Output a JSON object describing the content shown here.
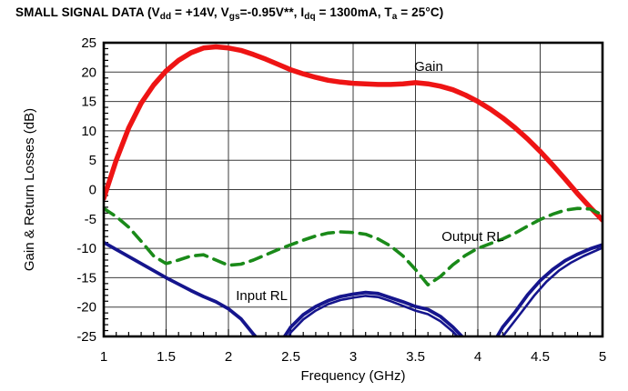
{
  "page": {
    "background": "#ffffff"
  },
  "title": {
    "plain": "SMALL SIGNAL DATA (Vdd = +14V, Vgs=-0.95V**, Idq = 1300mA, Ta = 25°C)",
    "segments": [
      {
        "text": "SMALL SIGNAL DATA (V"
      },
      {
        "text": "dd",
        "sub": true
      },
      {
        "text": " = +14V, V"
      },
      {
        "text": "gs",
        "sub": true
      },
      {
        "text": "=-0.95V**, I"
      },
      {
        "text": "dq",
        "sub": true
      },
      {
        "text": " = 1300mA, T"
      },
      {
        "text": "a",
        "sub": true
      },
      {
        "text": " = 25°C)"
      }
    ]
  },
  "chart_data": {
    "type": "line",
    "title": "SMALL SIGNAL DATA (Vdd = +14V, Vgs=-0.95V**, Idq = 1300mA, Ta = 25°C)",
    "xlabel": "Frequency (GHz)",
    "ylabel": "Gain & Return Losses (dB)",
    "xlim": [
      1,
      5
    ],
    "ylim": [
      -25,
      25
    ],
    "x_major_step": 0.5,
    "x_minor_step": 0.1,
    "y_major_step": 5,
    "y_minor_step": 1,
    "grid": true,
    "grid_color": "#3b3b3b",
    "frame_color": "#000000",
    "xticks": [
      {
        "v": 1,
        "label": "1"
      },
      {
        "v": 1.5,
        "label": "1.5"
      },
      {
        "v": 2,
        "label": "2"
      },
      {
        "v": 2.5,
        "label": "2.5"
      },
      {
        "v": 3,
        "label": "3"
      },
      {
        "v": 3.5,
        "label": "3.5"
      },
      {
        "v": 4,
        "label": "4"
      },
      {
        "v": 4.5,
        "label": "4.5"
      },
      {
        "v": 5,
        "label": "5"
      }
    ],
    "yticks": [
      {
        "v": 25,
        "label": "25"
      },
      {
        "v": 20,
        "label": "20"
      },
      {
        "v": 15,
        "label": "15"
      },
      {
        "v": 10,
        "label": "10"
      },
      {
        "v": 5,
        "label": "5"
      },
      {
        "v": 0,
        "label": "0"
      },
      {
        "v": -5,
        "label": "-5"
      },
      {
        "v": -10,
        "label": "-10"
      },
      {
        "v": -15,
        "label": "-15"
      },
      {
        "v": -20,
        "label": "-20"
      },
      {
        "v": -25,
        "label": "-25"
      }
    ],
    "series": [
      {
        "id": "input-rl-curve",
        "name": "Input RL",
        "color": "#15158d",
        "style": "solid",
        "width": 3.8,
        "x": [
          1.0,
          1.1,
          1.2,
          1.3,
          1.4,
          1.5,
          1.6,
          1.7,
          1.8,
          1.9,
          2.0,
          2.1,
          2.2,
          2.3,
          2.35,
          2.45,
          2.5,
          2.6,
          2.7,
          2.8,
          2.9,
          3.0,
          3.1,
          3.2,
          3.3,
          3.4,
          3.5,
          3.6,
          3.7,
          3.8,
          3.9,
          3.95,
          4.1,
          4.15,
          4.2,
          4.3,
          4.4,
          4.5,
          4.6,
          4.7,
          4.8,
          4.9,
          5.0
        ],
        "y": [
          -9.0,
          -10.2,
          -11.4,
          -12.6,
          -13.8,
          -15.0,
          -16.1,
          -17.2,
          -18.2,
          -19.1,
          -20.3,
          -22.0,
          -24.6,
          -27.0,
          -27.5,
          -25.0,
          -23.4,
          -21.3,
          -19.9,
          -18.9,
          -18.2,
          -17.8,
          -17.5,
          -17.7,
          -18.4,
          -19.1,
          -19.9,
          -20.4,
          -21.6,
          -23.4,
          -25.6,
          -27.2,
          -27.2,
          -25.2,
          -23.4,
          -20.8,
          -17.9,
          -15.5,
          -13.6,
          -12.1,
          -11.0,
          -10.1,
          -9.4
        ]
      },
      {
        "id": "input-rl-curve-2",
        "name": "Input RL (second trace)",
        "color": "#15158d",
        "style": "solid",
        "width": 2.6,
        "x": [
          2.44,
          2.5,
          2.6,
          2.7,
          2.8,
          2.9,
          3.0,
          3.1,
          3.2,
          3.3,
          3.4,
          3.5,
          3.6,
          3.7,
          3.8,
          3.9,
          3.95,
          4.12,
          4.17,
          4.25,
          4.35,
          4.45,
          4.55,
          4.65,
          4.75,
          4.85,
          5.0
        ],
        "y": [
          -26.8,
          -24.3,
          -22.1,
          -20.6,
          -19.5,
          -18.8,
          -18.4,
          -18.1,
          -18.3,
          -19.0,
          -19.8,
          -20.6,
          -21.2,
          -22.4,
          -24.2,
          -26.4,
          -27.6,
          -27.6,
          -25.8,
          -23.6,
          -20.9,
          -18.1,
          -15.7,
          -13.8,
          -12.4,
          -11.3,
          -9.9
        ]
      },
      {
        "id": "gain-curve",
        "name": "Gain",
        "color": "#ee1414",
        "style": "solid",
        "width": 5.5,
        "x": [
          1.0,
          1.1,
          1.2,
          1.3,
          1.4,
          1.5,
          1.6,
          1.7,
          1.8,
          1.9,
          2.0,
          2.1,
          2.2,
          2.3,
          2.4,
          2.5,
          2.6,
          2.7,
          2.8,
          2.9,
          3.0,
          3.1,
          3.2,
          3.3,
          3.4,
          3.5,
          3.6,
          3.7,
          3.8,
          3.9,
          4.0,
          4.1,
          4.2,
          4.3,
          4.4,
          4.5,
          4.6,
          4.7,
          4.8,
          4.9,
          5.0
        ],
        "y": [
          -1.5,
          5.0,
          10.5,
          14.7,
          17.8,
          20.2,
          22.0,
          23.3,
          24.1,
          24.3,
          24.1,
          23.7,
          23.0,
          22.2,
          21.3,
          20.4,
          19.7,
          19.1,
          18.6,
          18.3,
          18.1,
          18.0,
          17.9,
          17.9,
          18.0,
          18.2,
          18.0,
          17.6,
          17.0,
          16.1,
          15.0,
          13.7,
          12.2,
          10.5,
          8.6,
          6.5,
          4.2,
          1.8,
          -0.7,
          -3.0,
          -5.2
        ]
      },
      {
        "id": "output-rl-curve",
        "name": "Output RL",
        "color": "#1a8a19",
        "style": "dashed",
        "dash": [
          13,
          8
        ],
        "width": 3.6,
        "x": [
          1.0,
          1.1,
          1.2,
          1.3,
          1.4,
          1.5,
          1.6,
          1.7,
          1.8,
          1.9,
          2.0,
          2.1,
          2.2,
          2.3,
          2.4,
          2.5,
          2.6,
          2.7,
          2.8,
          2.9,
          3.0,
          3.1,
          3.2,
          3.3,
          3.4,
          3.5,
          3.6,
          3.7,
          3.8,
          3.9,
          4.0,
          4.1,
          4.2,
          4.3,
          4.4,
          4.5,
          4.6,
          4.7,
          4.8,
          4.9,
          5.0
        ],
        "y": [
          -3.2,
          -4.6,
          -6.4,
          -8.8,
          -11.3,
          -12.6,
          -12.0,
          -11.3,
          -11.1,
          -12.0,
          -12.9,
          -12.7,
          -12.0,
          -11.1,
          -10.2,
          -9.4,
          -8.6,
          -7.9,
          -7.4,
          -7.2,
          -7.3,
          -7.6,
          -8.4,
          -9.6,
          -11.3,
          -13.6,
          -16.2,
          -14.8,
          -12.8,
          -11.2,
          -10.0,
          -9.2,
          -8.4,
          -7.4,
          -6.2,
          -5.1,
          -4.2,
          -3.5,
          -3.2,
          -3.3,
          -4.3
        ]
      }
    ],
    "annotations": [
      {
        "id": "gain-label",
        "text": "Gain",
        "x": 3.49,
        "y": 20.2
      },
      {
        "id": "input-rl-label",
        "text": "Input RL",
        "x": 2.06,
        "y": -18.8
      },
      {
        "id": "output-rl-label",
        "text": "Output RL",
        "x": 3.71,
        "y": -8.75
      }
    ]
  }
}
